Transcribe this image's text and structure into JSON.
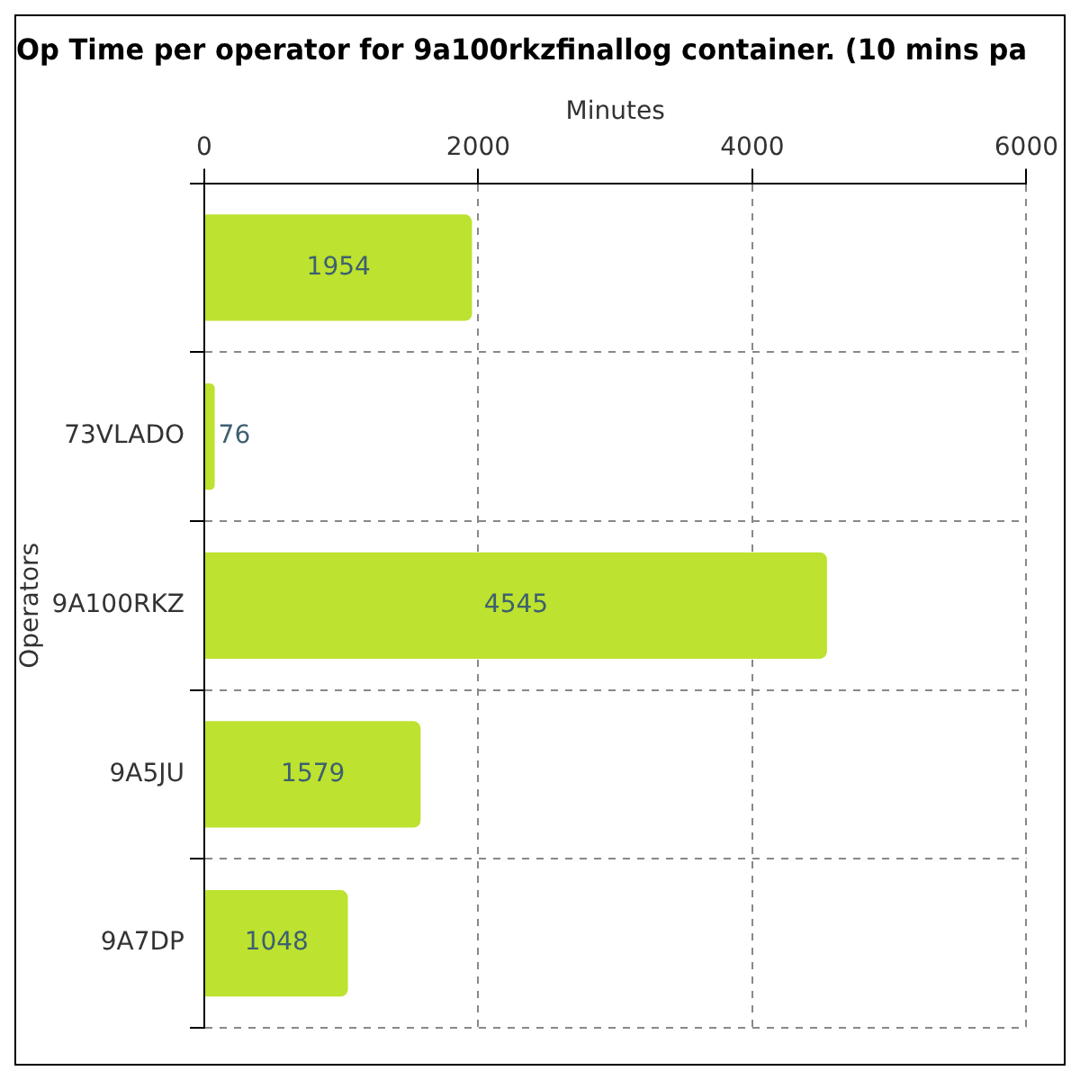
{
  "chart_data": {
    "type": "bar",
    "orientation": "horizontal",
    "title": "Op Time per operator for 9a100rkzfinallog container. (10 mins pa",
    "xlabel": "Minutes",
    "ylabel": "Operators",
    "categories": [
      null,
      "73VLADO",
      "9A100RKZ",
      "9A5JU",
      "9A7DP"
    ],
    "values": [
      1954,
      76,
      4545,
      1579,
      1048
    ],
    "color": "#bde22f",
    "xlim": [
      0,
      6000
    ],
    "xticks": [
      0,
      2000,
      4000,
      6000
    ],
    "grid": true,
    "data_labels": true,
    "legend": false
  }
}
